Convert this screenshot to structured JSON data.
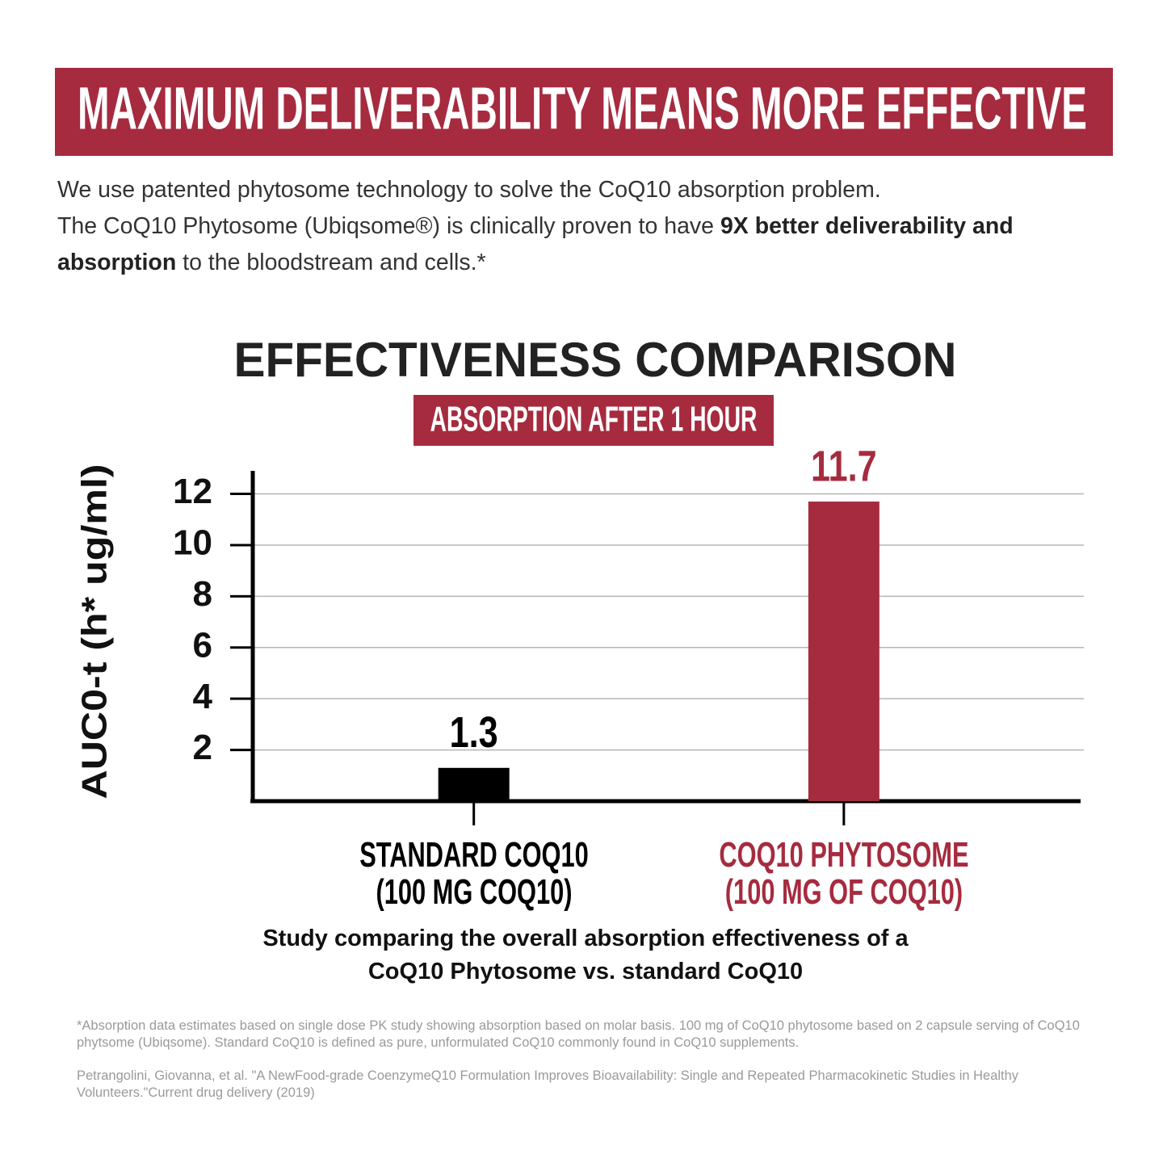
{
  "header": {
    "title": "MAXIMUM DELIVERABILITY MEANS MORE EFFECTIVE"
  },
  "intro": [
    [
      {
        "text": "We use patented phytosome technology to solve the CoQ10 absorption problem.",
        "bold": false
      }
    ],
    [
      {
        "text": "The CoQ10 Phytosome (Ubiqsome®) is clinically proven to have ",
        "bold": false
      },
      {
        "text": "9X better deliverability and absorption",
        "bold": true
      },
      {
        "text": " to the bloodstream and cells.*",
        "bold": false
      }
    ]
  ],
  "chart_data": {
    "type": "bar",
    "title": "EFFECTIVENESS COMPARISON",
    "subtitle": "ABSORPTION AFTER 1 HOUR",
    "y_label": "AUC0-t (h* ug/ml)",
    "categories": [
      "STANDARD COQ10\n(100 MG COQ10)",
      "COQ10 PHYTOSOME\n(100 MG OF COQ10)"
    ],
    "values": [
      1.3,
      11.7
    ],
    "colors": [
      "#000000",
      "#a62b3f"
    ],
    "ylim": [
      0,
      12.9
    ],
    "yticks": [
      2,
      4,
      6,
      8,
      10,
      12
    ],
    "grid": true,
    "caption": "Study comparing the overall absorption effectiveness of a CoQ10 Phytosome vs. standard CoQ10"
  },
  "footnotes": [
    "*Absorption data estimates based on single dose PK study showing absorption based on molar basis. 100 mg of CoQ10 phytosome based on 2 capsule serving of CoQ10 phytsome (Ubiqsome). Standard CoQ10 is defined as pure, unformulated CoQ10 commonly found in CoQ10 supplements.",
    "Petrangolini, Giovanna, et al. \"A NewFood-grade CoenzymeQ10 Formulation Improves Bioavailability: Single and Repeated Pharmacokinetic Studies in Healthy Volunteers.\"Current drug delivery (2019)"
  ]
}
